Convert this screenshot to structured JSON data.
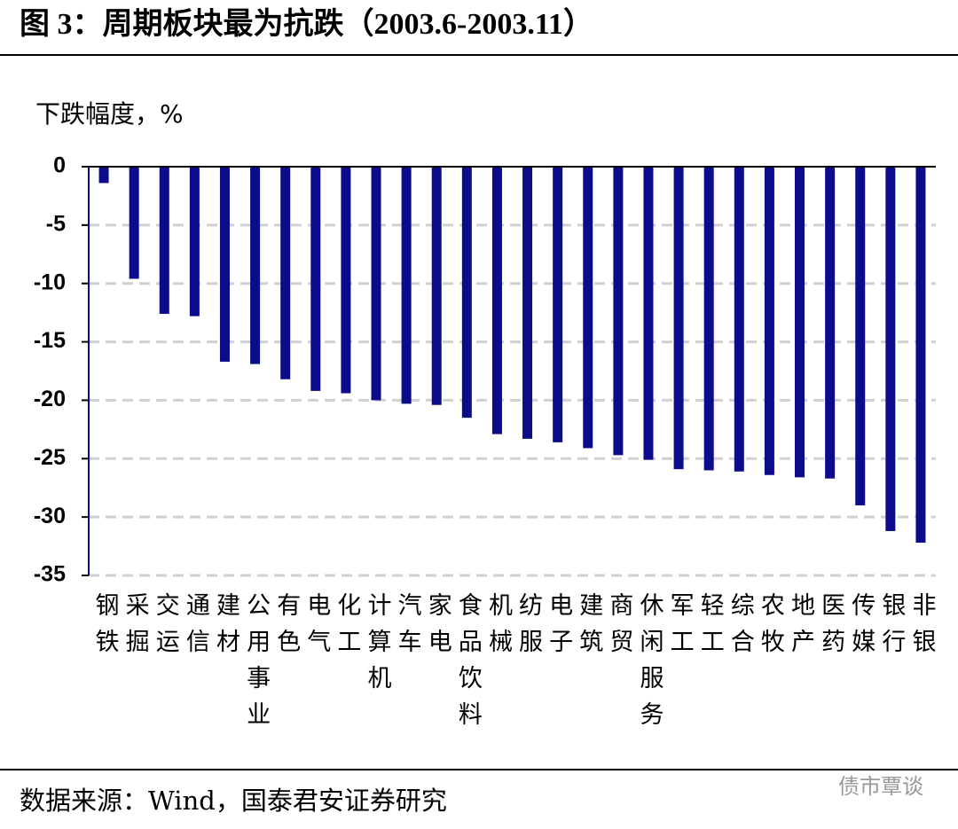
{
  "chart_data": {
    "type": "bar",
    "title": "图 3：周期板块最为抗跌（2003.6-2003.11）",
    "y_label": "下跌幅度，%",
    "categories": [
      "钢铁",
      "采掘",
      "交运",
      "通信",
      "建材",
      "公用事业",
      "有色",
      "电气",
      "化工",
      "计算机",
      "汽车",
      "家电",
      "食品饮料",
      "机械",
      "纺服",
      "电子",
      "建筑",
      "商贸",
      "休闲服务",
      "军工",
      "轻工",
      "综合",
      "农牧",
      "地产",
      "医药",
      "传媒",
      "银行",
      "非银"
    ],
    "values": [
      -1.4,
      -9.6,
      -12.6,
      -12.8,
      -16.7,
      -16.9,
      -18.2,
      -19.2,
      -19.4,
      -20.0,
      -20.3,
      -20.4,
      -21.5,
      -22.9,
      -23.3,
      -23.6,
      -24.1,
      -24.7,
      -25.1,
      -25.9,
      -26.0,
      -26.1,
      -26.4,
      -26.6,
      -26.7,
      -29.0,
      -31.2,
      -32.2
    ],
    "color": "#0c0c8a",
    "ylim": [
      -35,
      0
    ],
    "yticks": [
      0,
      -5,
      -10,
      -15,
      -20,
      -25,
      -30,
      -35
    ],
    "grid": true
  },
  "source": "数据来源：Wind，国泰君安证券研究",
  "watermark": "债市覃谈"
}
